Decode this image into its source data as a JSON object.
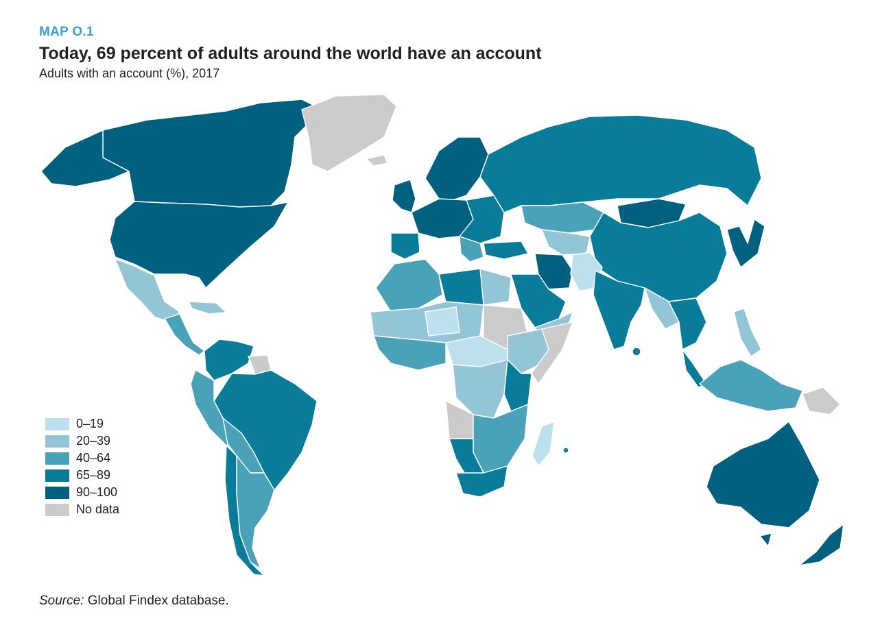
{
  "header": {
    "map_label": "MAP O.1",
    "title": "Today, 69 percent of adults around the world have an account",
    "subtitle": "Adults with an account (%), 2017"
  },
  "legend": {
    "items": [
      {
        "label": "0–19",
        "color": "#bde0ee"
      },
      {
        "label": "20–39",
        "color": "#92c5d6"
      },
      {
        "label": "40–64",
        "color": "#4aa2b8"
      },
      {
        "label": "65–89",
        "color": "#087c98"
      },
      {
        "label": "90–100",
        "color": "#00607f"
      },
      {
        "label": "No data",
        "color": "#cbcbcb"
      }
    ]
  },
  "footer": {
    "source_label": "Source:",
    "source_text": " Global Findex database."
  }
}
